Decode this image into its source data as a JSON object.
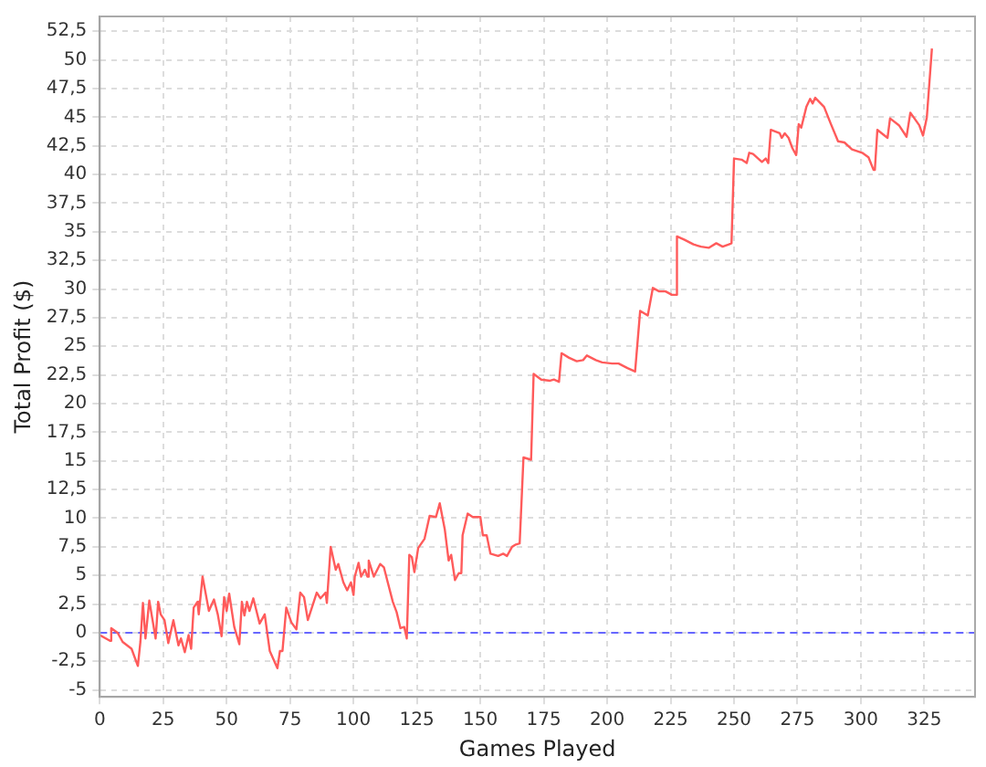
{
  "chart_data": {
    "type": "line",
    "xlabel": "Games Played",
    "ylabel": "Total Profit ($)",
    "xlim": [
      0,
      345
    ],
    "xticks": [
      0,
      25,
      50,
      75,
      100,
      125,
      150,
      175,
      200,
      225,
      250,
      275,
      300,
      325
    ],
    "ylim": [
      -5.6,
      53.8
    ],
    "yticks": [
      -5,
      {
        "value": -2.5,
        "label": "-2,5"
      },
      0,
      {
        "value": 2.5,
        "label": "2,5"
      },
      5,
      {
        "value": 7.5,
        "label": "7,5"
      },
      10,
      {
        "value": 12.5,
        "label": "12,5"
      },
      15,
      {
        "value": 17.5,
        "label": "17,5"
      },
      20,
      {
        "value": 22.5,
        "label": "22,5"
      },
      25,
      {
        "value": 27.5,
        "label": "27,5"
      },
      30,
      {
        "value": 32.5,
        "label": "32,5"
      },
      35,
      {
        "value": 37.5,
        "label": "37,5"
      },
      40,
      {
        "value": 42.5,
        "label": "42,5"
      },
      45,
      {
        "value": 47.5,
        "label": "47,5"
      },
      50,
      {
        "value": 52.5,
        "label": "52,5"
      }
    ],
    "grid": true,
    "legend": false,
    "marker": "none",
    "line_style": "solid",
    "ref_lines": [
      {
        "axis": "y",
        "value": 0,
        "color": "#6666ff",
        "line_style": "dashed"
      }
    ],
    "series": [
      {
        "color": "#ff5b5b",
        "x": [
          0,
          4,
          4.5,
          7,
          9,
          12.5,
          15,
          16,
          17,
          18,
          19.5,
          22,
          23,
          24,
          25.5,
          27,
          29,
          31,
          32,
          33.5,
          35,
          36,
          37,
          38.5,
          39,
          40.5,
          43,
          45,
          46.5,
          48,
          49,
          50,
          51,
          53,
          55,
          56,
          57,
          58,
          59,
          60.5,
          63,
          65,
          67,
          70,
          71,
          72,
          73.5,
          75.5,
          77.5,
          79,
          80.5,
          82,
          85.5,
          87,
          89,
          89.5,
          91,
          93,
          94,
          96,
          97.5,
          99,
          100,
          100.5,
          102,
          103,
          104.5,
          105.5,
          106,
          108,
          110.5,
          112,
          113.5,
          115.5,
          117,
          118.5,
          120,
          121,
          122,
          123,
          124,
          125.5,
          128,
          130,
          132.5,
          134,
          136,
          137.5,
          138.5,
          140,
          141.5,
          142.5,
          143,
          145,
          147,
          150,
          151,
          152.5,
          154,
          157,
          159,
          160.5,
          162.5,
          164,
          165.5,
          167,
          170,
          171,
          174,
          177.5,
          179,
          181,
          182,
          185,
          188,
          190.5,
          192,
          195.5,
          198,
          202,
          204.5,
          208,
          211,
          213,
          216,
          218,
          220.5,
          223,
          225.5,
          227,
          227.5,
          230.5,
          234,
          237,
          240,
          243,
          245.5,
          248,
          249,
          250,
          253,
          255,
          256,
          257.5,
          259.5,
          261,
          262.5,
          263.5,
          264.5,
          268,
          268.8,
          270,
          271.5,
          273,
          274.5,
          275.5,
          276.5,
          278.5,
          280,
          281,
          282,
          285.5,
          288,
          291,
          293.5,
          296.5,
          300.5,
          303,
          305,
          305.5,
          306.5,
          310.5,
          311.5,
          315,
          318,
          319.5,
          323,
          324.5,
          326,
          328
        ],
        "values": [
          -0.2,
          -0.7,
          0.4,
          0,
          -0.8,
          -1.4,
          -2.9,
          -0.8,
          2.6,
          -0.5,
          2.8,
          -0.5,
          2.7,
          1.6,
          1.1,
          -0.9,
          1.1,
          -1.1,
          -0.5,
          -1.7,
          -0.2,
          -1.4,
          2.2,
          2.7,
          1.6,
          4.9,
          1.9,
          2.9,
          1.6,
          -0.3,
          3.1,
          1.9,
          3.4,
          0.5,
          -1,
          2.7,
          1.5,
          2.7,
          1.9,
          3,
          0.8,
          1.6,
          -1.6,
          -3.1,
          -1.6,
          -1.6,
          2.2,
          0.9,
          0.3,
          3.5,
          3.1,
          1.1,
          3.5,
          3,
          3.5,
          2.6,
          7.5,
          5.5,
          6,
          4.4,
          3.7,
          4.4,
          3.3,
          4.9,
          6.1,
          4.9,
          5.5,
          4.9,
          6.3,
          4.9,
          6,
          5.7,
          4.4,
          2.7,
          1.8,
          0.4,
          0.5,
          -0.5,
          6.8,
          6.6,
          5.3,
          7.4,
          8.2,
          10.2,
          10.1,
          11.3,
          9,
          6.3,
          6.8,
          4.6,
          5.2,
          5.2,
          8.5,
          10.4,
          10.1,
          10.1,
          8.5,
          8.5,
          6.9,
          6.7,
          6.9,
          6.7,
          7.5,
          7.7,
          7.8,
          15.3,
          15.1,
          22.6,
          22.1,
          22,
          22.1,
          21.9,
          24.4,
          24,
          23.7,
          23.8,
          24.2,
          23.8,
          23.6,
          23.5,
          23.5,
          23.1,
          22.8,
          28.1,
          27.7,
          30.1,
          29.8,
          29.8,
          29.5,
          29.5,
          34.6,
          34.3,
          33.9,
          33.7,
          33.6,
          34,
          33.7,
          33.9,
          34,
          41.4,
          41.3,
          41,
          41.9,
          41.8,
          41.4,
          41.1,
          41.4,
          41,
          43.9,
          43.6,
          43.2,
          43.6,
          43.2,
          42.3,
          41.7,
          44.4,
          44.1,
          45.9,
          46.6,
          46.2,
          46.7,
          45.9,
          44.5,
          42.9,
          42.8,
          42.2,
          41.9,
          41.5,
          40.4,
          40.4,
          43.9,
          43.2,
          44.9,
          44.3,
          43.3,
          45.4,
          44.3,
          43.4,
          45,
          51
        ]
      }
    ]
  }
}
